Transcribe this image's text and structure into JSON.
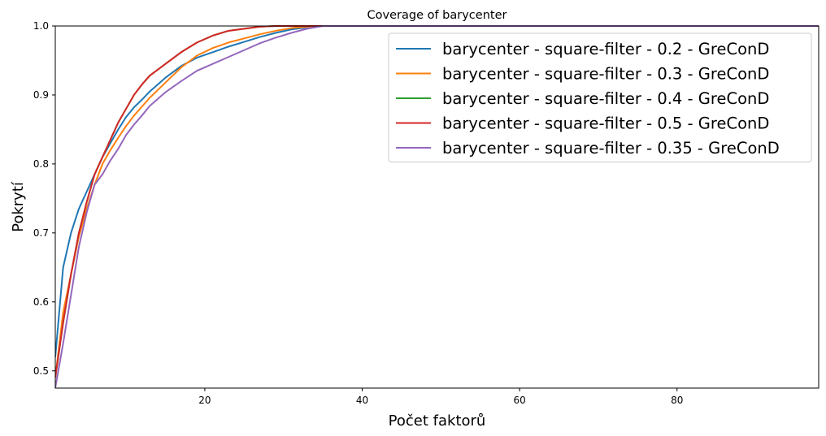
{
  "chart_data": {
    "type": "line",
    "title": "Coverage of barycenter",
    "xlabel": "Počet faktorů",
    "ylabel": "Pokrytí",
    "xlim": [
      1,
      98
    ],
    "ylim": [
      0.475,
      1.0
    ],
    "xticks": [
      20,
      40,
      60,
      80
    ],
    "yticks": [
      0.5,
      0.6,
      0.7,
      0.8,
      0.9,
      1.0
    ],
    "ytick_labels": [
      "0.5",
      "0.6",
      "0.7",
      "0.8",
      "0.9",
      "1.0"
    ],
    "grid": false,
    "legend_position": "top-right",
    "series": [
      {
        "name": "barycenter - square-filter - 0.2 - GreConD",
        "color": "#1f77b4",
        "x": [
          1,
          2,
          3,
          4,
          5,
          6,
          7,
          8,
          9,
          10,
          11,
          12,
          13,
          15,
          17,
          19,
          21,
          23,
          25,
          27,
          29,
          31,
          33,
          35,
          36,
          40,
          60,
          80,
          98
        ],
        "y": [
          0.52,
          0.65,
          0.7,
          0.735,
          0.76,
          0.785,
          0.81,
          0.83,
          0.85,
          0.868,
          0.882,
          0.893,
          0.905,
          0.925,
          0.942,
          0.954,
          0.962,
          0.97,
          0.977,
          0.984,
          0.99,
          0.995,
          0.998,
          1.0,
          1.0,
          1.0,
          1.0,
          1.0,
          1.0
        ]
      },
      {
        "name": "barycenter - square-filter - 0.3 - GreConD",
        "color": "#ff7f0e",
        "x": [
          1,
          2,
          3,
          4,
          5,
          6,
          7,
          8,
          9,
          10,
          11,
          12,
          13,
          15,
          17,
          19,
          21,
          23,
          25,
          27,
          29,
          31,
          33,
          35,
          36,
          40,
          60,
          80,
          98
        ],
        "y": [
          0.49,
          0.585,
          0.64,
          0.695,
          0.735,
          0.77,
          0.8,
          0.82,
          0.838,
          0.855,
          0.87,
          0.883,
          0.896,
          0.918,
          0.94,
          0.957,
          0.968,
          0.976,
          0.982,
          0.988,
          0.993,
          0.997,
          0.999,
          1.0,
          1.0,
          1.0,
          1.0,
          1.0,
          1.0
        ]
      },
      {
        "name": "barycenter - square-filter - 0.4 - GreConD",
        "color": "#2ca02c",
        "x": [
          1,
          2,
          3,
          4,
          5,
          6,
          7,
          8,
          9,
          10,
          11,
          12,
          13,
          15,
          17,
          19,
          21,
          23,
          25,
          27,
          29,
          30,
          31,
          33,
          35,
          36,
          40,
          60,
          80,
          98
        ],
        "y": [
          0.49,
          0.57,
          0.64,
          0.7,
          0.745,
          0.785,
          0.81,
          0.835,
          0.86,
          0.88,
          0.9,
          0.915,
          0.928,
          0.945,
          0.962,
          0.976,
          0.986,
          0.993,
          0.996,
          0.999,
          1.0,
          1.0,
          1.0,
          1.0,
          1.0,
          1.0,
          1.0,
          1.0,
          1.0,
          1.0
        ]
      },
      {
        "name": "barycenter - square-filter - 0.5 - GreConD",
        "color": "#d62728",
        "x": [
          1,
          2,
          3,
          4,
          5,
          6,
          7,
          8,
          9,
          10,
          11,
          12,
          13,
          15,
          17,
          19,
          21,
          23,
          25,
          27,
          29,
          30,
          31,
          33,
          35,
          36,
          40,
          60,
          80,
          98
        ],
        "y": [
          0.49,
          0.57,
          0.64,
          0.7,
          0.745,
          0.785,
          0.81,
          0.835,
          0.86,
          0.88,
          0.9,
          0.915,
          0.928,
          0.945,
          0.962,
          0.976,
          0.986,
          0.993,
          0.996,
          0.999,
          1.0,
          1.0,
          1.0,
          1.0,
          1.0,
          1.0,
          1.0,
          1.0,
          1.0,
          1.0
        ]
      },
      {
        "name": "barycenter - square-filter - 0.35 - GreConD",
        "color": "#9467bd",
        "x": [
          1,
          2,
          3,
          4,
          5,
          6,
          7,
          8,
          9,
          10,
          11,
          12,
          13,
          15,
          17,
          19,
          21,
          23,
          25,
          27,
          29,
          31,
          33,
          35,
          36,
          40,
          60,
          80,
          98
        ],
        "y": [
          0.475,
          0.54,
          0.61,
          0.68,
          0.73,
          0.77,
          0.785,
          0.805,
          0.822,
          0.842,
          0.857,
          0.87,
          0.884,
          0.904,
          0.92,
          0.935,
          0.945,
          0.955,
          0.965,
          0.975,
          0.983,
          0.99,
          0.996,
          1.0,
          1.0,
          1.0,
          1.0,
          1.0,
          1.0
        ]
      }
    ]
  }
}
